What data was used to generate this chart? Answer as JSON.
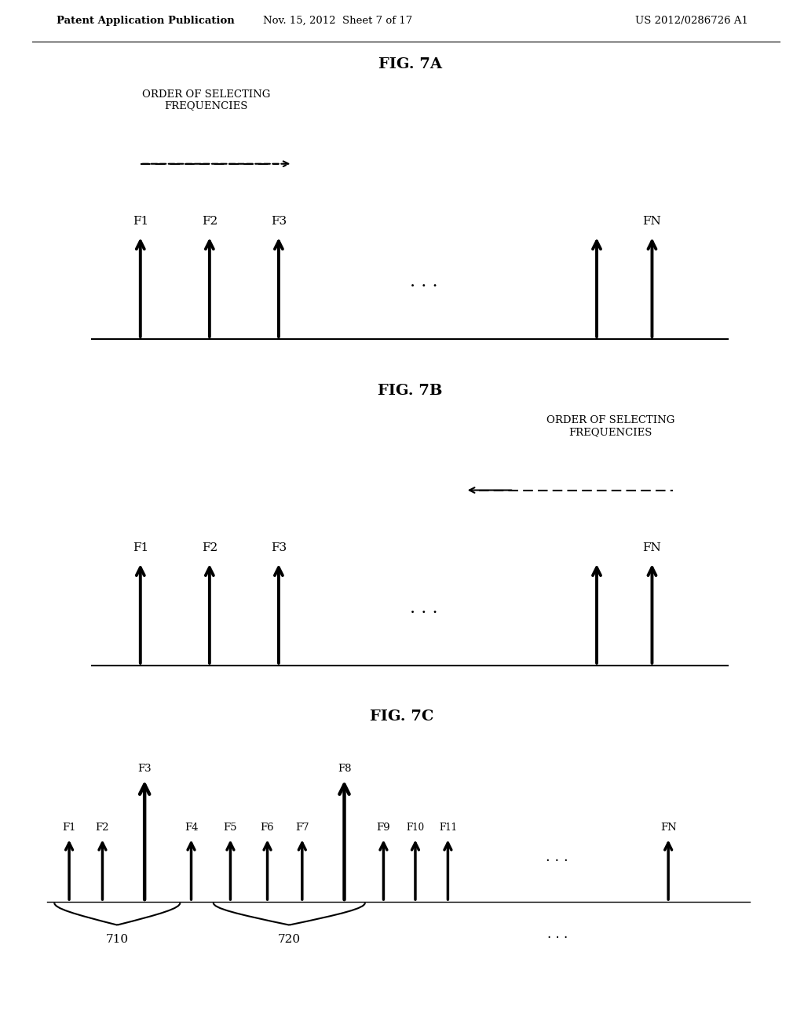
{
  "header_left": "Patent Application Publication",
  "header_mid": "Nov. 15, 2012  Sheet 7 of 17",
  "header_right": "US 2012/0286726 A1",
  "fig7a_title": "FIG. 7A",
  "fig7b_title": "FIG. 7B",
  "fig7c_title": "FIG. 7C",
  "order_label": "ORDER OF SELECTING\nFREQUENCIES",
  "label_710": "710",
  "label_720": "720",
  "bg_color": "#ffffff"
}
